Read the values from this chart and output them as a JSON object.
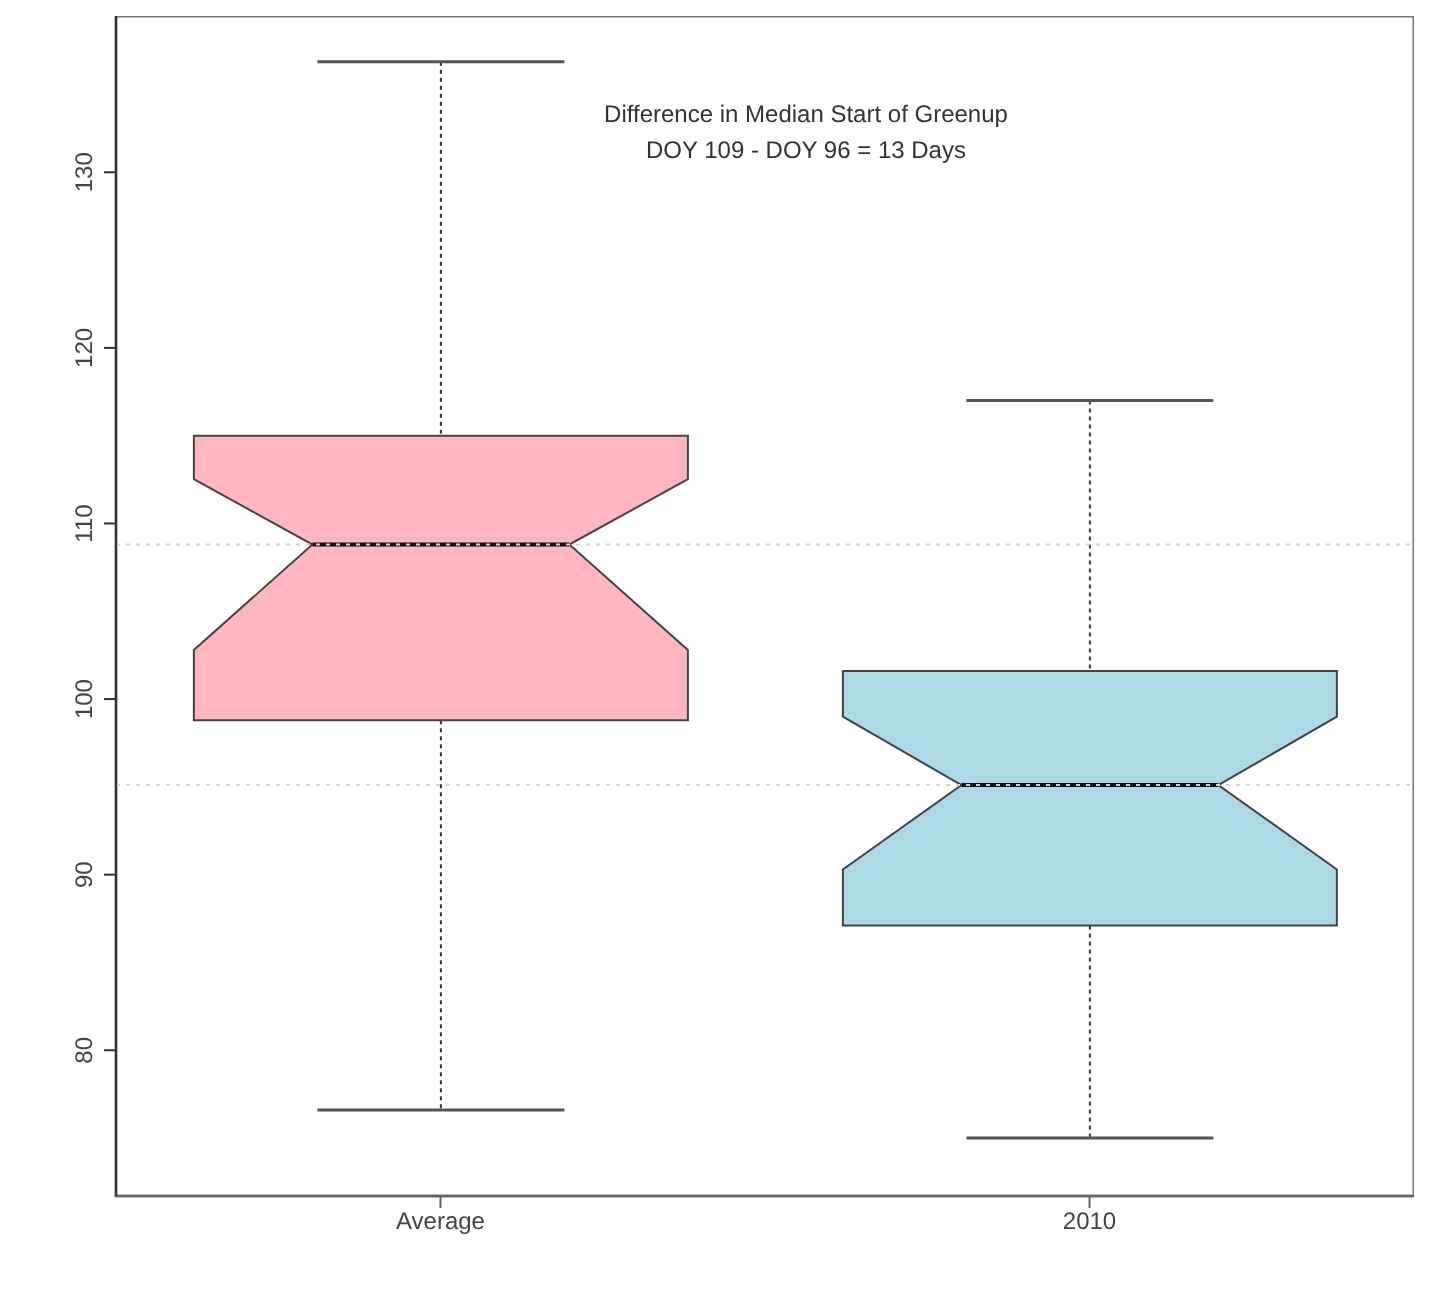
{
  "chart_data": {
    "type": "box",
    "categories": [
      "Average",
      "2010"
    ],
    "series": [
      {
        "colors": [
          "#ffb6c1",
          "#add8e6"
        ],
        "boxes": [
          {
            "low": 76.6,
            "q1": 98.8,
            "median": 108.8,
            "q3": 115,
            "high": 136.3
          },
          {
            "low": 75,
            "q1": 87.1,
            "median": 95.1,
            "q3": 101.6,
            "high": 117
          }
        ]
      }
    ],
    "ylim": [
      71.7,
      138.9
    ],
    "yticks": [
      80,
      90,
      100,
      110,
      120,
      130
    ],
    "grid": false,
    "ref_lines": [
      {
        "axis": "y",
        "value": 108.8,
        "color": "#d3d3d3",
        "line_style": "dotted"
      },
      {
        "axis": "y",
        "value": 95.1,
        "color": "#d3d3d3",
        "line_style": "dotted"
      }
    ],
    "annotations": [
      "Difference in Median Start of Greenup",
      "DOY 109 - DOY 96 = 13 Days"
    ]
  }
}
